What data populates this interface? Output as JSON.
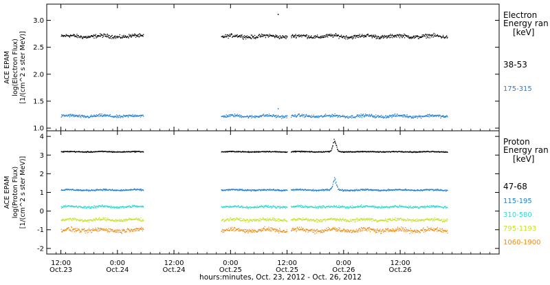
{
  "chart_data": [
    {
      "type": "scatter",
      "panel": "electron",
      "ylabel": [
        "ACE EPAM",
        "log(Electron Flux)",
        "[1/(cm^2 s ster MeV)]"
      ],
      "ylim": [
        0.95,
        3.3
      ],
      "yticks": [
        1.0,
        1.5,
        2.0,
        2.5,
        3.0
      ],
      "ytick_labels": [
        "1.0",
        "1.5",
        "2.0",
        "2.5",
        "3.0"
      ],
      "legend": {
        "title": [
          "Electron",
          "Energy ran",
          "[keV]"
        ],
        "placement": "right"
      },
      "series": [
        {
          "name": "38-53",
          "color": "#000000",
          "level": 2.71,
          "spread": 0.05
        },
        {
          "name": "175-315",
          "color": "#1f7fd6",
          "level": 1.23,
          "spread": 0.04
        }
      ],
      "annotations": [
        {
          "x_hours": 46.0,
          "y": 3.12,
          "note": "outlier point"
        },
        {
          "x_hours": 46.0,
          "y": 1.37,
          "note": "outlier point"
        }
      ]
    },
    {
      "type": "scatter",
      "panel": "proton",
      "ylabel": [
        "ACE EPAM",
        "log(Proton Flux)",
        "[1/(cm^2 s ster MeV)]"
      ],
      "ylim": [
        -2.3,
        4.3
      ],
      "yticks": [
        -2,
        -1,
        0,
        1,
        2,
        3,
        4
      ],
      "ytick_labels": [
        "-2",
        "-1",
        "0",
        "1",
        "2",
        "3",
        "4"
      ],
      "legend": {
        "title": [
          "Proton",
          "Energy ran",
          "[keV]"
        ],
        "placement": "right"
      },
      "series": [
        {
          "name": "47-68",
          "color": "#000000",
          "level": 3.2,
          "spread": 0.04
        },
        {
          "name": "115-195",
          "color": "#1f7fd6",
          "level": 1.15,
          "spread": 0.06
        },
        {
          "name": "310-580",
          "color": "#2fd8cf",
          "level": 0.25,
          "spread": 0.09
        },
        {
          "name": "795-1193",
          "color": "#c7e02a",
          "level": -0.45,
          "spread": 0.12
        },
        {
          "name": "1060-1900",
          "color": "#f08a12",
          "level": -1.0,
          "spread": 0.17
        }
      ],
      "events": [
        {
          "x_hours": 58.0,
          "peak_47_68": 3.9,
          "peak_115_195": 1.8
        }
      ]
    }
  ],
  "x_axis": {
    "xlim_hours": [
      -3,
      93
    ],
    "data_segments_hours": [
      [
        0,
        17.5
      ],
      [
        34,
        48
      ],
      [
        48.8,
        82
      ]
    ],
    "ticks": [
      {
        "hours": 0,
        "time": "12:00",
        "date": "Oct.23"
      },
      {
        "hours": 12,
        "time": "0:00",
        "date": "Oct.24"
      },
      {
        "hours": 24,
        "time": "12:00",
        "date": "Oct.24"
      },
      {
        "hours": 36,
        "time": "0:00",
        "date": "Oct.25"
      },
      {
        "hours": 48,
        "time": "12:00",
        "date": "Oct.25"
      },
      {
        "hours": 60,
        "time": "0:00",
        "date": "Oct.26"
      },
      {
        "hours": 72,
        "time": "12:00",
        "date": "Oct.26"
      }
    ],
    "xlabel": "hours:minutes, Oct. 23, 2012 - Oct. 26, 2012"
  }
}
